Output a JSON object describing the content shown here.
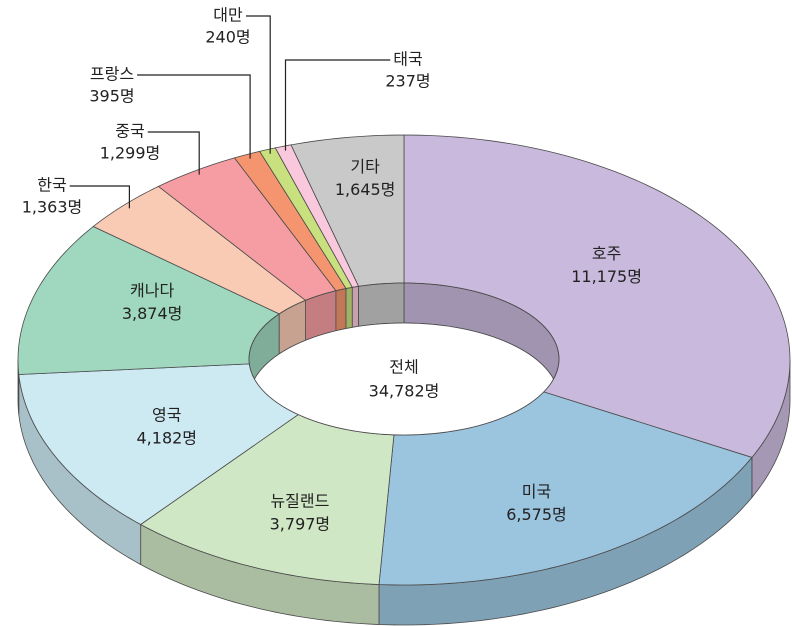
{
  "chart_data": {
    "type": "donut",
    "categories": [
      "호주",
      "미국",
      "뉴질랜드",
      "영국",
      "캐나다",
      "한국",
      "중국",
      "프랑스",
      "대만",
      "태국",
      "기타"
    ],
    "values": [
      11175,
      6575,
      3797,
      4182,
      3874,
      1363,
      1299,
      395,
      240,
      237,
      1645
    ],
    "value_labels": [
      "11,175명",
      "6,575명",
      "3,797명",
      "4,182명",
      "3,874명",
      "1,363명",
      "1,299명",
      "395명",
      "240명",
      "237명",
      "1,645명"
    ],
    "colors": [
      "#c9b9dc",
      "#9bc4de",
      "#cfe7c4",
      "#cdeaf3",
      "#9fd8bf",
      "#f9cab4",
      "#f59da2",
      "#f4956f",
      "#c8e07d",
      "#f9c8dc",
      "#c9c9c9"
    ],
    "center_title": "전체",
    "total": 34782,
    "total_label": "34,782명"
  }
}
